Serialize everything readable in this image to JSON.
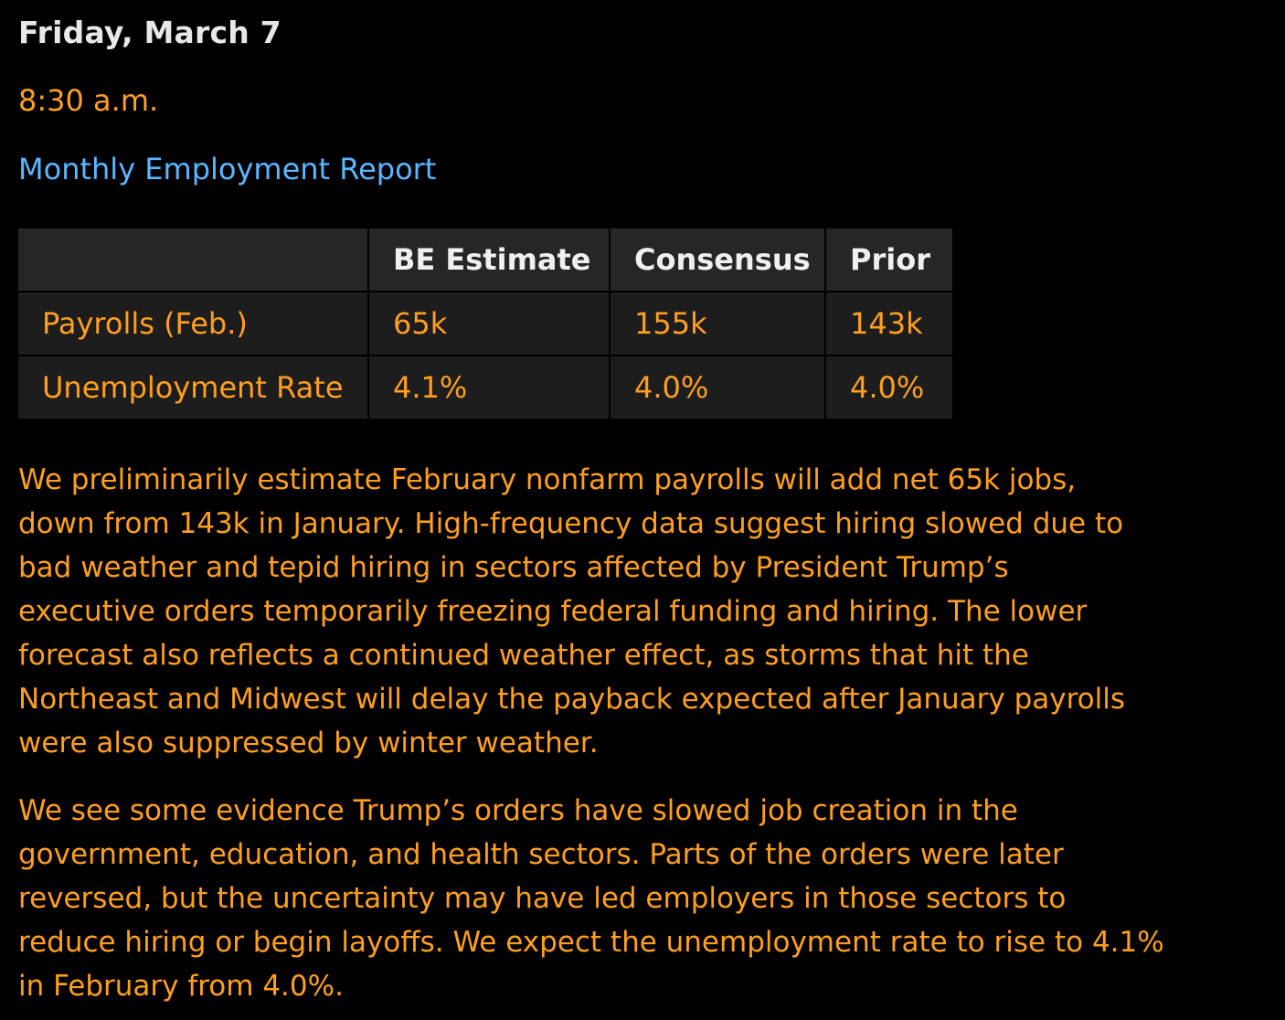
{
  "header": {
    "date": "Friday, March 7",
    "time": "8:30 a.m.",
    "report_title": "Monthly Employment Report"
  },
  "table": {
    "columns": [
      "",
      "BE Estimate",
      "Consensus",
      "Prior"
    ],
    "rows": [
      {
        "label": "Payrolls (Feb.)",
        "be_estimate": "65k",
        "consensus": "155k",
        "prior": "143k"
      },
      {
        "label": "Unemployment Rate",
        "be_estimate": "4.1%",
        "consensus": "4.0%",
        "prior": "4.0%"
      }
    ]
  },
  "body": {
    "paragraph_1": [
      "We preliminarily estimate February nonfarm payrolls will add net 65k jobs,",
      "down from 143k in January. High-frequency data suggest hiring slowed due to",
      "bad weather and tepid hiring in sectors affected by President Trump’s",
      "executive orders temporarily freezing federal funding and hiring. The lower",
      "forecast also reflects a continued weather effect, as storms that hit the",
      "Northeast and Midwest will delay the payback expected after January payrolls",
      "were also suppressed by winter weather."
    ],
    "paragraph_2": [
      "We see some evidence Trump’s orders have slowed job creation in the",
      "government, education, and health sectors. Parts of the orders were later",
      "reversed, but the uncertainty may have led employers in those sectors to",
      "reduce hiring or begin layoffs. We expect the unemployment rate to rise to 4.1%",
      "in February from 4.0%."
    ]
  },
  "colors": {
    "background": "#000000",
    "accent_orange": "#ff9f1c",
    "link_blue": "#59b8ff",
    "header_text": "#e8e8e8",
    "table_cell": "#1d1d1d",
    "table_header": "#262626"
  }
}
